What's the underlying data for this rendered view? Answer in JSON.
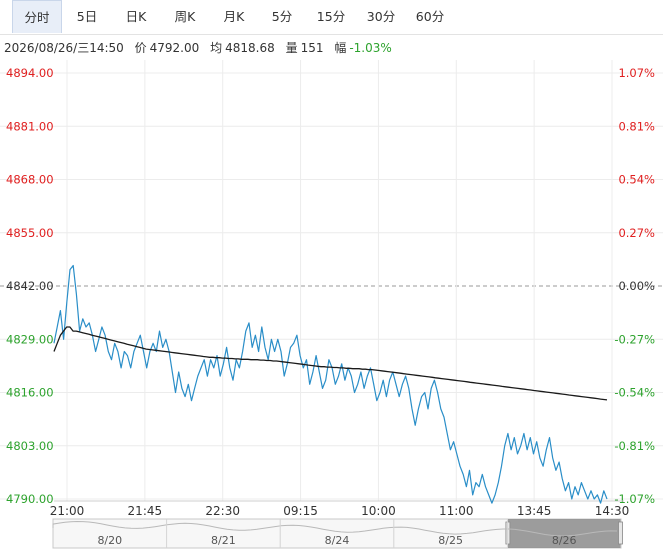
{
  "tabs": [
    {
      "label": "分时",
      "active": true
    },
    {
      "label": "5日",
      "active": false
    },
    {
      "label": "日K",
      "active": false
    },
    {
      "label": "周K",
      "active": false
    },
    {
      "label": "月K",
      "active": false
    },
    {
      "label": "5分",
      "active": false
    },
    {
      "label": "15分",
      "active": false
    },
    {
      "label": "30分",
      "active": false
    },
    {
      "label": "60分",
      "active": false
    }
  ],
  "info": {
    "datetime": "2026/08/26/三14:50",
    "price_label": "价",
    "price": "4792.00",
    "avg_label": "均",
    "avg": "4818.68",
    "volume_label": "量",
    "volume": "151",
    "change_label": "幅",
    "change": "-1.03%"
  },
  "colors": {
    "up": "#e02020",
    "down": "#2ea32e",
    "neutral": "#333333",
    "price_line": "#2a8ec8",
    "avg_line": "#1a1a1a",
    "nav_selected": "#8c8c8c"
  },
  "chart_data": {
    "type": "line",
    "prev_close": 4842.0,
    "ylim": [
      4790.0,
      4894.0
    ],
    "y_ticks": [
      "4894.00",
      "4881.00",
      "4868.00",
      "4855.00",
      "4842.00",
      "4829.00",
      "4816.00",
      "4803.00",
      "4790.00"
    ],
    "y_ticks_pct": [
      "1.07%",
      "0.81%",
      "0.54%",
      "0.27%",
      "0.00%",
      "-0.27%",
      "-0.54%",
      "-0.81%",
      "-1.07%"
    ],
    "x_ticks": [
      "21:00",
      "21:45",
      "22:30",
      "09:15",
      "10:00",
      "11:00",
      "13:45",
      "14:30"
    ],
    "series": [
      {
        "values": [
          4828,
          4832,
          4836,
          4829,
          4838,
          4846,
          4847,
          4840,
          4831,
          4834,
          4832,
          4833,
          4830,
          4826,
          4829,
          4832,
          4830,
          4826,
          4824,
          4828,
          4826,
          4822,
          4826,
          4825,
          4822,
          4826,
          4828,
          4830,
          4826,
          4822,
          4826,
          4828,
          4826,
          4831,
          4827,
          4829,
          4826,
          4821,
          4816,
          4821,
          4817,
          4815,
          4818,
          4814,
          4817,
          4820,
          4822,
          4824,
          4820,
          4824,
          4822,
          4825,
          4820,
          4823,
          4827,
          4822,
          4819,
          4824,
          4822,
          4826,
          4831,
          4833,
          4827,
          4830,
          4826,
          4832,
          4827,
          4824,
          4829,
          4826,
          4829,
          4826,
          4820,
          4823,
          4827,
          4828,
          4830,
          4825,
          4822,
          4824,
          4818,
          4821,
          4825,
          4821,
          4817,
          4819,
          4824,
          4822,
          4818,
          4820,
          4823,
          4819,
          4822,
          4820,
          4816,
          4818,
          4821,
          4817,
          4820,
          4822,
          4818,
          4814,
          4816,
          4819,
          4815,
          4819,
          4821,
          4818,
          4815,
          4818,
          4820,
          4817,
          4812,
          4808,
          4812,
          4815,
          4816,
          4812,
          4817,
          4819,
          4816,
          4812,
          4810,
          4806,
          4802,
          4804,
          4801,
          4798,
          4796,
          4793,
          4797,
          4791,
          4794,
          4793,
          4796,
          4793,
          4791,
          4789,
          4791,
          4794,
          4798,
          4803,
          4806,
          4802,
          4805,
          4801,
          4803,
          4806,
          4802,
          4805,
          4801,
          4804,
          4800,
          4798,
          4802,
          4805,
          4800,
          4797,
          4799,
          4795,
          4792,
          4794,
          4790,
          4793,
          4791,
          4794,
          4792,
          4790,
          4792,
          4790,
          4791,
          4789,
          4792,
          4790
        ],
        "label_key": "price"
      },
      {
        "values": [
          4826,
          4828,
          4830,
          4831,
          4832,
          4832,
          4831,
          4831,
          4830.8,
          4830.6,
          4830.4,
          4830.2,
          4830,
          4829.8,
          4829.6,
          4829.4,
          4829.2,
          4829,
          4828.8,
          4828.6,
          4828.4,
          4828.2,
          4828,
          4827.8,
          4827.6,
          4827.4,
          4827.2,
          4827,
          4826.8,
          4826.6,
          4826.5,
          4826.4,
          4826.3,
          4826.2,
          4826.1,
          4826,
          4825.9,
          4825.8,
          4825.7,
          4825.6,
          4825.5,
          4825.4,
          4825.3,
          4825.2,
          4825.1,
          4825,
          4824.9,
          4824.8,
          4824.7,
          4824.6,
          4824.6,
          4824.5,
          4824.5,
          4824.4,
          4824.4,
          4824.3,
          4824.3,
          4824.2,
          4824.2,
          4824.1,
          4824.1,
          4824.1,
          4824,
          4824,
          4824,
          4823.9,
          4823.9,
          4823.8,
          4823.8,
          4823.7,
          4823.7,
          4823.6,
          4823.5,
          4823.4,
          4823.3,
          4823.2,
          4823.1,
          4823,
          4822.9,
          4822.8,
          4822.7,
          4822.6,
          4822.5,
          4822.4,
          4822.3,
          4822.3,
          4822.2,
          4822.2,
          4822.1,
          4822.1,
          4822,
          4822,
          4821.9,
          4821.9,
          4821.8,
          4821.8,
          4821.8,
          4821.7,
          4821.7,
          4821.6,
          4821.6,
          4821.5,
          4821.4,
          4821.3,
          4821.2,
          4821.1,
          4821,
          4820.9,
          4820.8,
          4820.7,
          4820.6,
          4820.5,
          4820.4,
          4820.3,
          4820.2,
          4820.1,
          4820,
          4819.9,
          4819.8,
          4819.7,
          4819.6,
          4819.5,
          4819.4,
          4819.3,
          4819.2,
          4819.1,
          4819,
          4818.9,
          4818.8,
          4818.7,
          4818.6,
          4818.5,
          4818.4,
          4818.3,
          4818.2,
          4818.1,
          4818,
          4817.9,
          4817.8,
          4817.7,
          4817.6,
          4817.5,
          4817.4,
          4817.3,
          4817.2,
          4817.1,
          4817,
          4816.9,
          4816.8,
          4816.7,
          4816.6,
          4816.5,
          4816.4,
          4816.3,
          4816.2,
          4816.1,
          4816,
          4815.9,
          4815.8,
          4815.7,
          4815.6,
          4815.5,
          4815.4,
          4815.3,
          4815.2,
          4815.1,
          4815,
          4814.9,
          4814.8,
          4814.7,
          4814.6,
          4814.5,
          4814.4,
          4814.3,
          4814.2
        ],
        "label_key": "avg"
      }
    ]
  },
  "navigator": {
    "dates": [
      "8/20",
      "8/21",
      "8/24",
      "8/25",
      "8/26"
    ],
    "selected_index": 4
  }
}
